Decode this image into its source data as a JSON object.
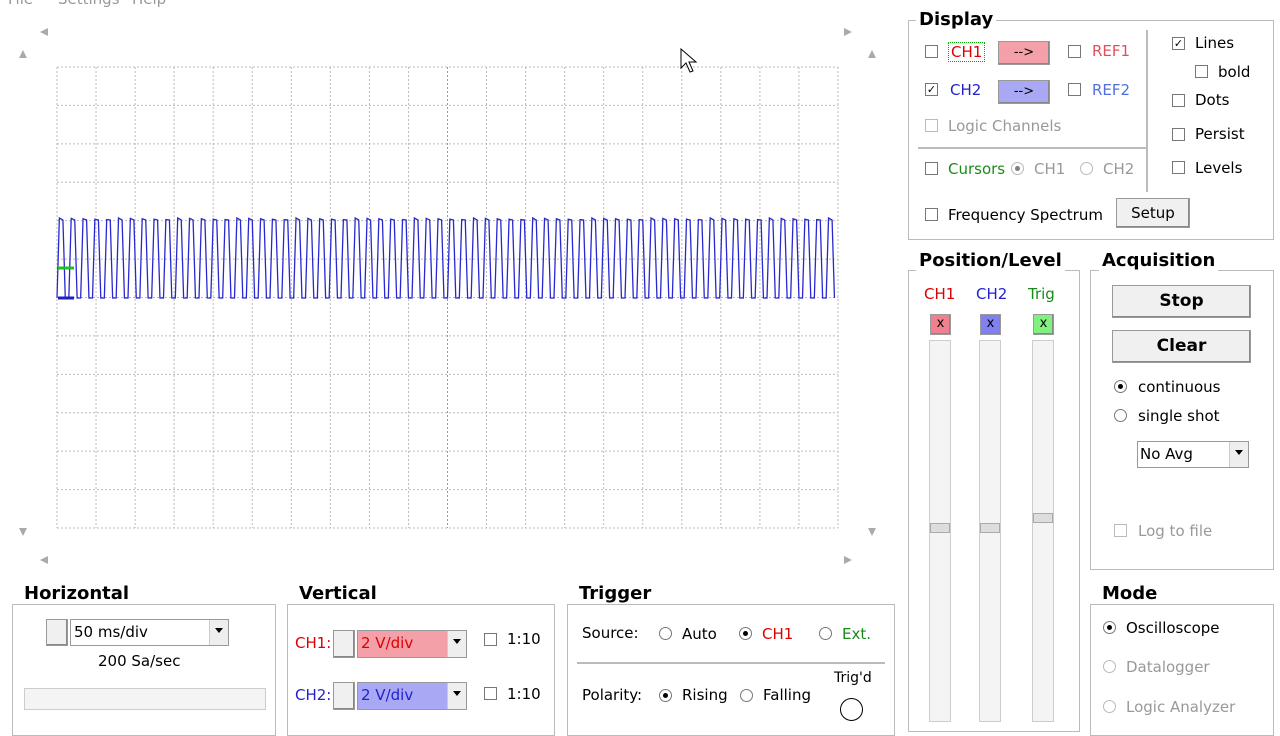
{
  "menu": [
    "File",
    "Settings",
    "Help"
  ],
  "display": {
    "title": "Display",
    "ch1": "CH1",
    "ch2": "CH2",
    "arrow1": "-->",
    "arrow2": "-->",
    "ref1": "REF1",
    "ref2": "REF2",
    "logic": "Logic Channels",
    "cursors": "Cursors",
    "cursor_ch1": "CH1",
    "cursor_ch2": "CH2",
    "spectrum": "Frequency Spectrum",
    "setup": "Setup",
    "lines": "Lines",
    "bold": "bold",
    "dots": "Dots",
    "persist": "Persist",
    "levels": "Levels"
  },
  "position_level": {
    "title": "Position/Level",
    "ch1": "CH1",
    "ch2": "CH2",
    "trig": "Trig",
    "ch1_btn": "x",
    "ch2_btn": "x",
    "trig_btn": "x"
  },
  "acquisition": {
    "title": "Acquisition",
    "stop": "Stop",
    "clear": "Clear",
    "continuous": "continuous",
    "single": "single shot",
    "avg": "No Avg",
    "log": "Log to file"
  },
  "mode": {
    "title": "Mode",
    "options": [
      "Oscilloscope",
      "Datalogger",
      "Logic Analyzer"
    ]
  },
  "horizontal": {
    "title": "Horizontal",
    "timebase": "50 ms/div",
    "rate": "200 Sa/sec"
  },
  "vertical": {
    "title": "Vertical",
    "ch1_label": "CH1:",
    "ch1_scale": "2 V/div",
    "ch1_probe": "1:10",
    "ch2_label": "CH2:",
    "ch2_scale": "2 V/div",
    "ch2_probe": "1:10"
  },
  "trigger": {
    "title": "Trigger",
    "source": "Source:",
    "auto": "Auto",
    "ch1": "CH1",
    "ext": "Ext.",
    "polarity": "Polarity:",
    "rising": "Rising",
    "falling": "Falling",
    "trigd": "Trig'd"
  }
}
